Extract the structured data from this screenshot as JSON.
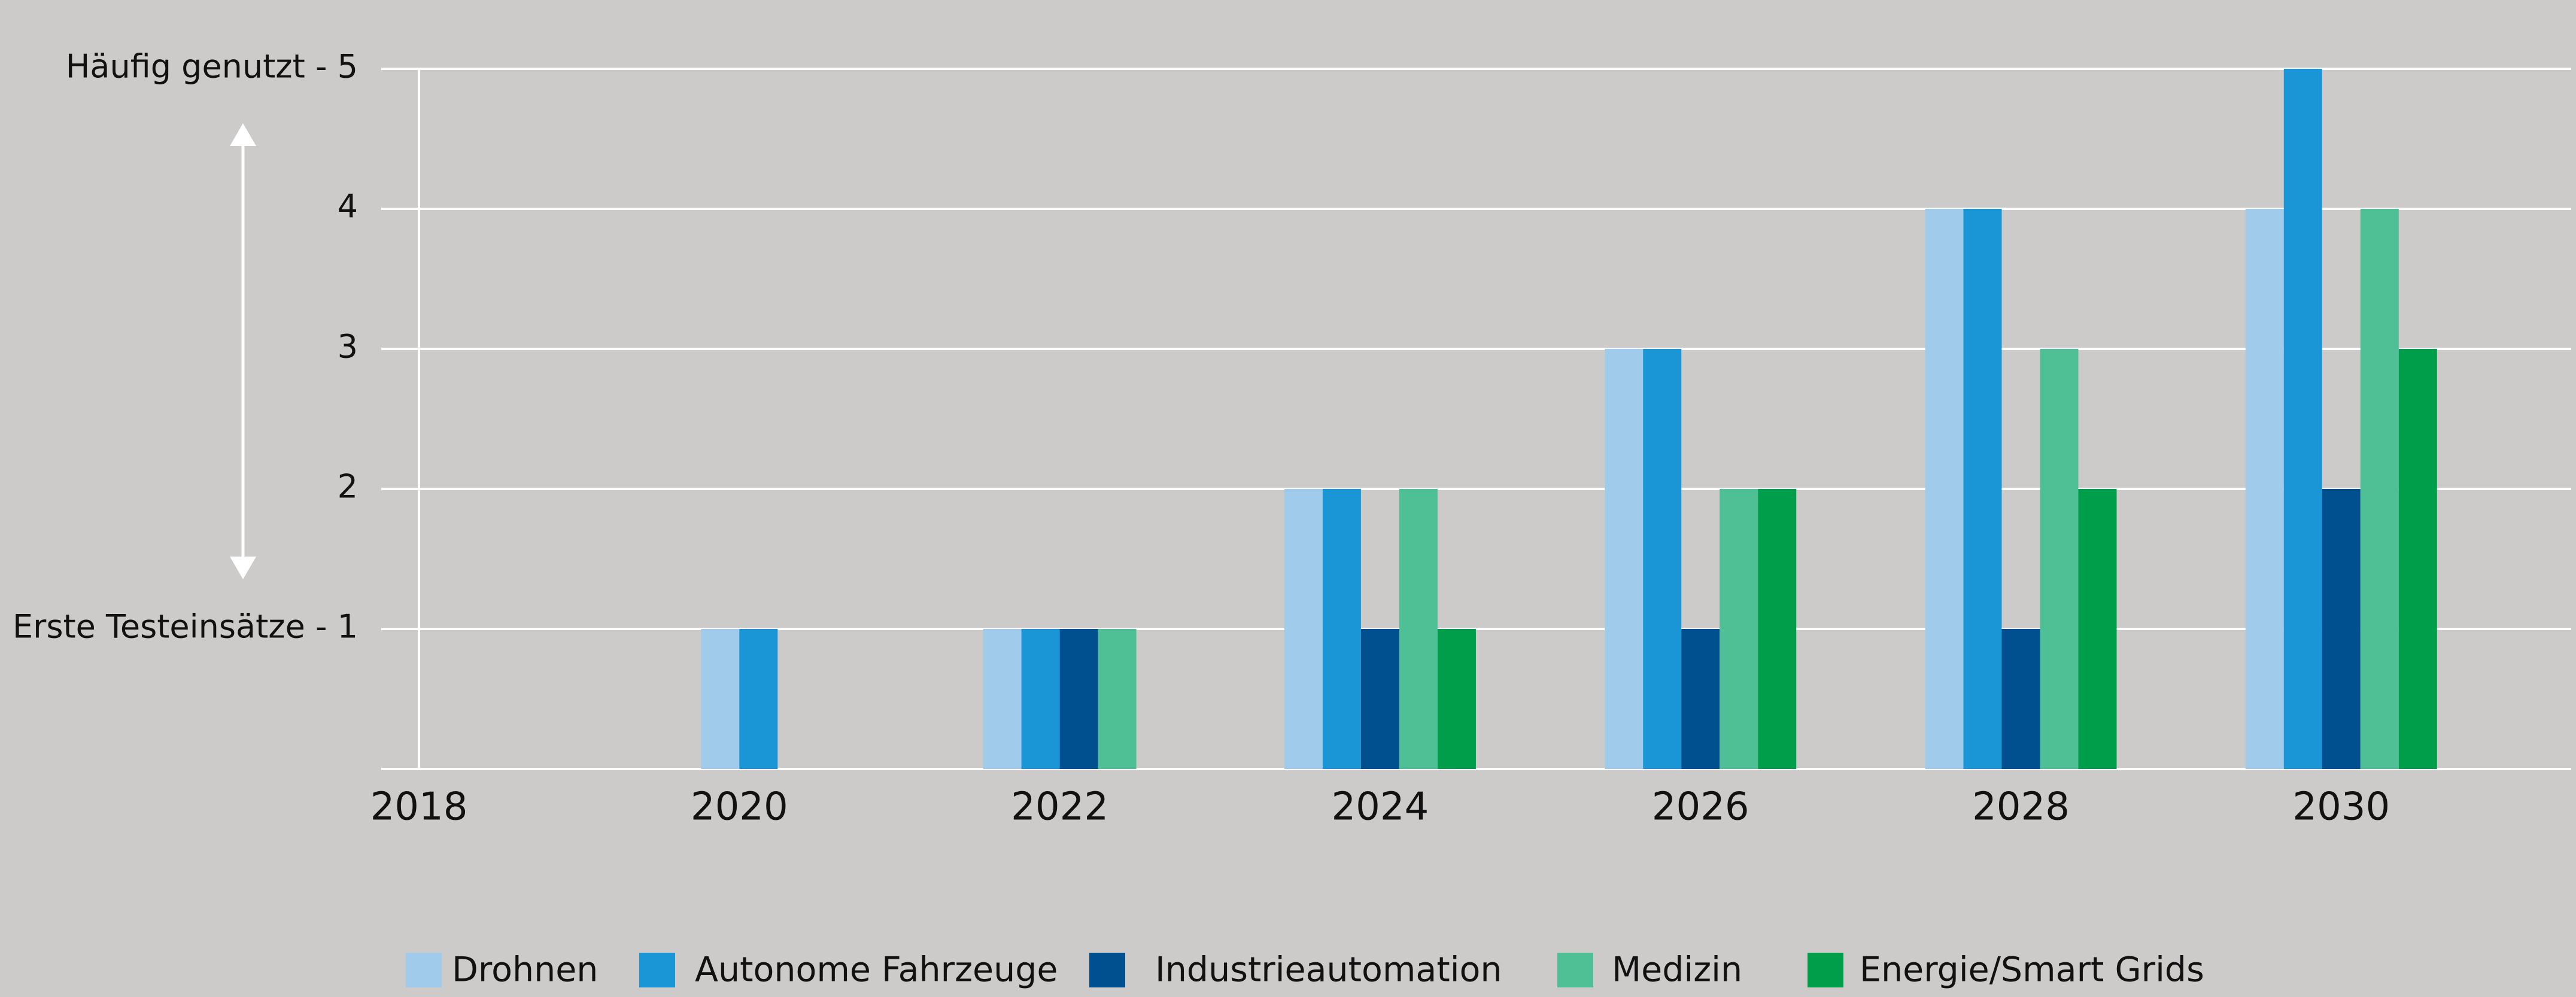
{
  "chart_data": {
    "type": "bar",
    "categories": [
      "2018",
      "2020",
      "2022",
      "2024",
      "2026",
      "2028",
      "2030"
    ],
    "series": [
      {
        "name": "Drohnen",
        "color": "#a0cbeb",
        "values": [
          null,
          1,
          1,
          2,
          3,
          4,
          4
        ]
      },
      {
        "name": "Autonome Fahrzeuge",
        "color": "#1a96d6",
        "values": [
          null,
          1,
          1,
          2,
          3,
          4,
          5
        ]
      },
      {
        "name": "Industrieautomation",
        "color": "#00508f",
        "values": [
          null,
          null,
          1,
          1,
          1,
          1,
          2
        ]
      },
      {
        "name": "Medizin",
        "color": "#4fbf96",
        "values": [
          null,
          null,
          1,
          2,
          2,
          3,
          4
        ]
      },
      {
        "name": "Energie/Smart Grids",
        "color": "#009e4b",
        "values": [
          null,
          null,
          null,
          1,
          2,
          2,
          3
        ]
      }
    ],
    "ylim": [
      0,
      5
    ],
    "yticks": [
      {
        "value": 1,
        "label": "Erste Testeinsätze - 1"
      },
      2,
      3,
      4,
      {
        "value": 5,
        "label": "Häufig genutzt - 5"
      }
    ],
    "grid": true,
    "legend": "bottom"
  }
}
